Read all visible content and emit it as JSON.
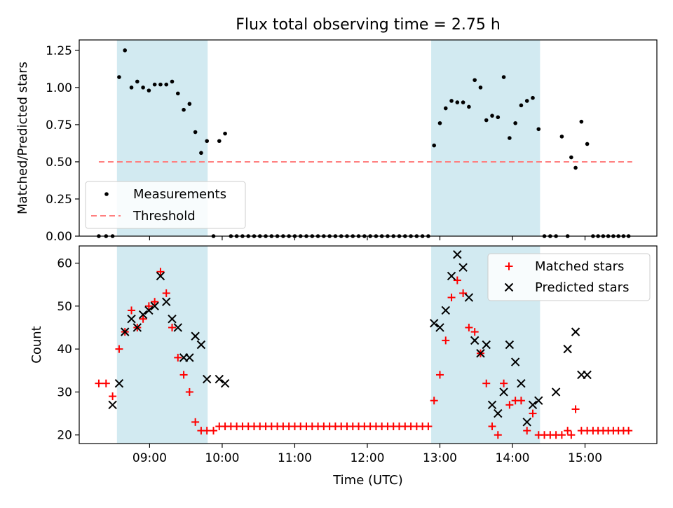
{
  "chart_data": {
    "type": "scatter",
    "title": "Flux total observing time = 2.75 h",
    "xlabel": "Time (UTC)",
    "x_unit": "hours UTC",
    "xlim": [
      8.03,
      15.99
    ],
    "xticks": [
      9,
      10,
      11,
      12,
      13,
      14,
      15
    ],
    "xtick_labels": [
      "09:00",
      "10:00",
      "11:00",
      "12:00",
      "13:00",
      "14:00",
      "15:00"
    ],
    "shaded_intervals": [
      [
        8.55,
        9.8
      ],
      [
        12.88,
        14.38
      ]
    ],
    "colors": {
      "shade": "#add8e6",
      "measurement": "#000000",
      "threshold": "#ff7f7f",
      "matched": "#ff0000",
      "predicted": "#000000"
    },
    "panels": [
      {
        "id": "ratio",
        "ylabel": "Matched/Predicted stars",
        "ylim": [
          0,
          1.32
        ],
        "yticks": [
          0,
          0.25,
          0.5,
          0.75,
          1.0,
          1.25
        ],
        "ytick_labels": [
          "0.00",
          "0.25",
          "0.50",
          "0.75",
          "1.00",
          "1.25"
        ],
        "legend": {
          "position": "lower-left",
          "measurements_label": "Measurements",
          "threshold_label": "Threshold"
        },
        "threshold": {
          "value": 0.5,
          "x_range": [
            8.3,
            15.65
          ]
        },
        "measurements": {
          "x": [
            8.3,
            8.4,
            8.49,
            8.58,
            8.66,
            8.75,
            8.83,
            8.91,
            8.99,
            9.07,
            9.15,
            9.23,
            9.31,
            9.39,
            9.47,
            9.55,
            9.63,
            9.71,
            9.79,
            9.88,
            9.96,
            10.04,
            10.12,
            10.2,
            10.28,
            10.36,
            10.44,
            10.52,
            10.6,
            10.68,
            10.76,
            10.84,
            10.92,
            11.0,
            11.08,
            11.16,
            11.24,
            11.32,
            11.4,
            11.48,
            11.56,
            11.64,
            11.72,
            11.8,
            11.88,
            11.96,
            12.04,
            12.12,
            12.2,
            12.28,
            12.36,
            12.44,
            12.52,
            12.6,
            12.68,
            12.76,
            12.84,
            12.92,
            13.0,
            13.08,
            13.16,
            13.24,
            13.32,
            13.4,
            13.48,
            13.56,
            13.64,
            13.72,
            13.8,
            13.88,
            13.96,
            14.04,
            14.12,
            14.2,
            14.28,
            14.36,
            14.44,
            14.52,
            14.6,
            14.68,
            14.76,
            14.81,
            14.87,
            14.95,
            15.03,
            15.11,
            15.18,
            15.25,
            15.32,
            15.39,
            15.46,
            15.53,
            15.6
          ],
          "y": [
            0,
            0,
            0,
            1.07,
            1.25,
            1.0,
            1.04,
            1.0,
            0.98,
            1.02,
            1.02,
            1.02,
            1.04,
            0.96,
            0.85,
            0.89,
            0.7,
            0.56,
            0.64,
            0,
            0.64,
            0.69,
            0,
            0,
            0,
            0,
            0,
            0,
            0,
            0,
            0,
            0,
            0,
            0,
            0,
            0,
            0,
            0,
            0,
            0,
            0,
            0,
            0,
            0,
            0,
            0,
            0,
            0,
            0,
            0,
            0,
            0,
            0,
            0,
            0,
            0,
            0,
            0.61,
            0.76,
            0.86,
            0.91,
            0.9,
            0.9,
            0.87,
            1.05,
            1.0,
            0.78,
            0.81,
            0.8,
            1.07,
            0.66,
            0.76,
            0.88,
            0.91,
            0.93,
            0.72,
            0,
            0,
            0,
            0.67,
            0,
            0.53,
            0.46,
            0.77,
            0.62,
            0,
            0,
            0,
            0,
            0,
            0,
            0,
            0
          ]
        }
      },
      {
        "id": "counts",
        "ylabel": "Count",
        "ylim": [
          18,
          64
        ],
        "yticks": [
          20,
          30,
          40,
          50,
          60
        ],
        "ytick_labels": [
          "20",
          "30",
          "40",
          "50",
          "60"
        ],
        "legend": {
          "position": "top-right"
        },
        "series": [
          {
            "name": "Matched stars",
            "marker": "+",
            "color": "#ff0000",
            "x": [
              8.3,
              8.4,
              8.49,
              8.58,
              8.66,
              8.75,
              8.83,
              8.91,
              8.99,
              9.07,
              9.15,
              9.23,
              9.31,
              9.39,
              9.47,
              9.55,
              9.63,
              9.71,
              9.79,
              9.88,
              9.96,
              10.04,
              10.12,
              10.2,
              10.28,
              10.36,
              10.44,
              10.52,
              10.6,
              10.68,
              10.76,
              10.84,
              10.92,
              11.0,
              11.08,
              11.16,
              11.24,
              11.32,
              11.4,
              11.48,
              11.56,
              11.64,
              11.72,
              11.8,
              11.88,
              11.96,
              12.04,
              12.12,
              12.2,
              12.28,
              12.36,
              12.44,
              12.52,
              12.6,
              12.68,
              12.76,
              12.84,
              12.92,
              13.0,
              13.08,
              13.16,
              13.24,
              13.32,
              13.4,
              13.48,
              13.56,
              13.64,
              13.72,
              13.8,
              13.88,
              13.96,
              14.04,
              14.12,
              14.2,
              14.28,
              14.36,
              14.44,
              14.52,
              14.6,
              14.68,
              14.76,
              14.81,
              14.87,
              14.95,
              15.03,
              15.11,
              15.18,
              15.25,
              15.32,
              15.39,
              15.46,
              15.53,
              15.6
            ],
            "y": [
              32,
              32,
              29,
              40,
              44,
              49,
              45,
              47,
              50,
              51,
              58,
              53,
              45,
              38,
              34,
              30,
              23,
              21,
              21,
              21,
              22,
              22,
              22,
              22,
              22,
              22,
              22,
              22,
              22,
              22,
              22,
              22,
              22,
              22,
              22,
              22,
              22,
              22,
              22,
              22,
              22,
              22,
              22,
              22,
              22,
              22,
              22,
              22,
              22,
              22,
              22,
              22,
              22,
              22,
              22,
              22,
              22,
              28,
              34,
              42,
              52,
              56,
              53,
              45,
              44,
              39,
              32,
              22,
              20,
              32,
              27,
              28,
              28,
              21,
              25,
              20,
              20,
              20,
              20,
              20,
              21,
              20,
              26,
              21,
              21,
              21,
              21,
              21,
              21,
              21,
              21,
              21,
              21
            ]
          },
          {
            "name": "Predicted stars",
            "marker": "x",
            "color": "#000000",
            "x": [
              8.49,
              8.58,
              8.66,
              8.75,
              8.83,
              8.91,
              8.99,
              9.07,
              9.15,
              9.23,
              9.31,
              9.39,
              9.47,
              9.55,
              9.63,
              9.71,
              9.79,
              9.96,
              10.04,
              12.92,
              13.0,
              13.08,
              13.16,
              13.24,
              13.32,
              13.4,
              13.48,
              13.56,
              13.64,
              13.72,
              13.8,
              13.88,
              13.96,
              14.04,
              14.12,
              14.2,
              14.28,
              14.36,
              14.6,
              14.76,
              14.87,
              14.95,
              15.03
            ],
            "y": [
              27,
              32,
              44,
              47,
              45,
              48,
              49,
              50,
              57,
              51,
              47,
              45,
              38,
              38,
              43,
              41,
              33,
              33,
              32,
              46,
              45,
              49,
              57,
              62,
              59,
              52,
              42,
              39,
              41,
              27,
              25,
              30,
              41,
              37,
              32,
              23,
              27,
              28,
              30,
              40,
              44,
              34,
              34
            ]
          }
        ]
      }
    ]
  }
}
